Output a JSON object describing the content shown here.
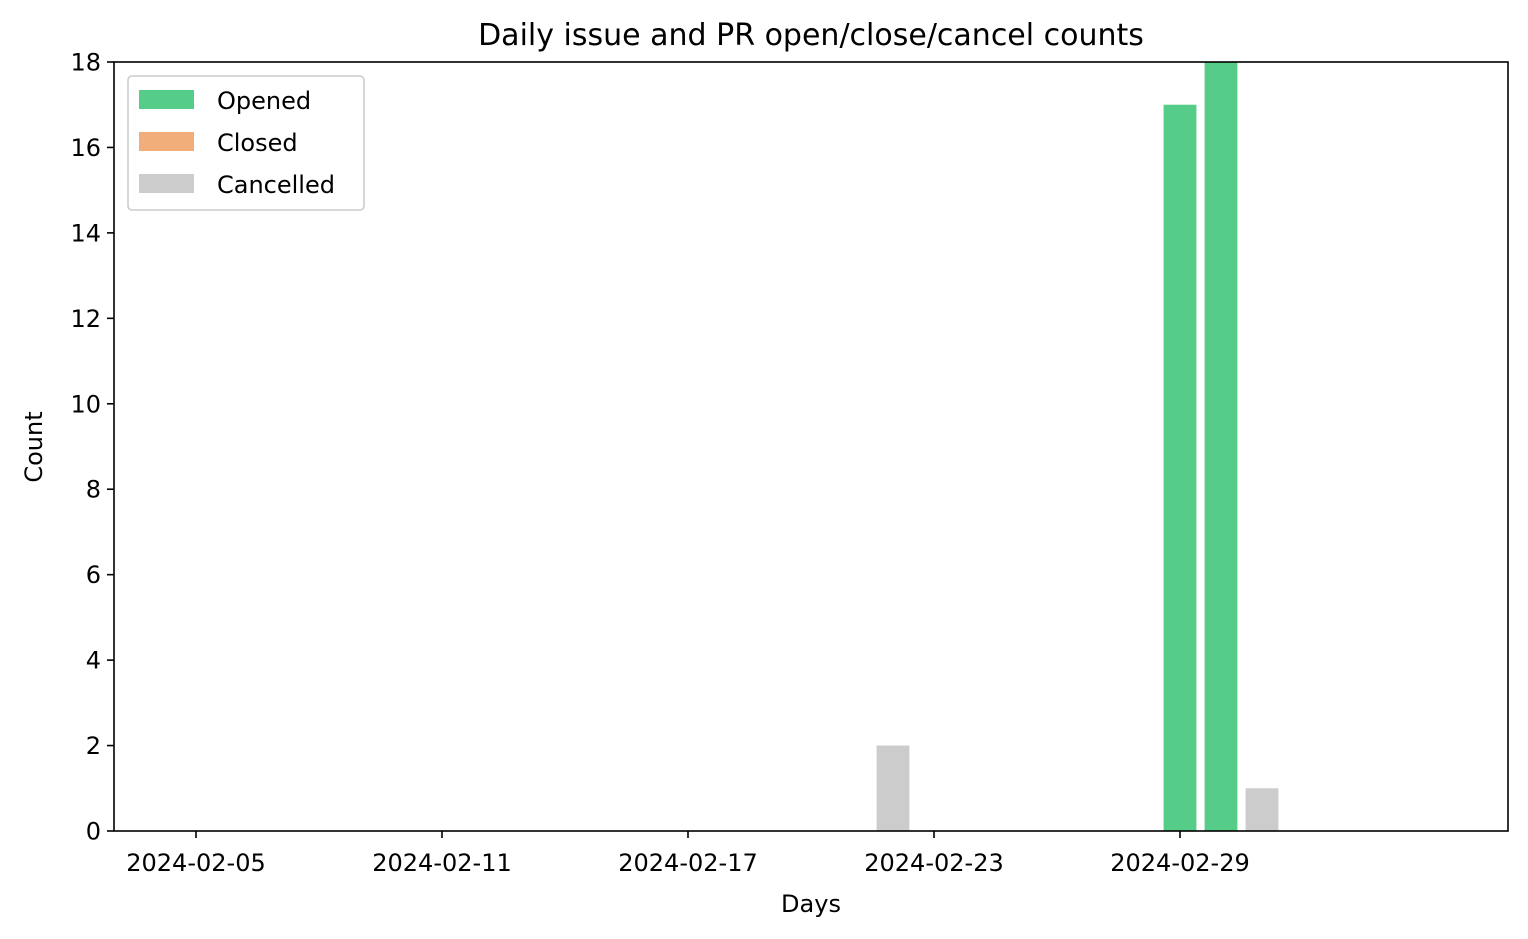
{
  "chart_data": {
    "type": "bar",
    "title": "Daily issue and PR open/close/cancel counts",
    "xlabel": "Days",
    "ylabel": "Count",
    "ylim": [
      0,
      18
    ],
    "xlim": [
      "2024-02-03",
      "2024-03-08"
    ],
    "x_ticks": [
      "2024-02-05",
      "2024-02-11",
      "2024-02-17",
      "2024-02-23",
      "2024-02-29"
    ],
    "y_ticks": [
      0,
      2,
      4,
      6,
      8,
      10,
      12,
      14,
      16,
      18
    ],
    "grid": false,
    "legend_position": "top-left",
    "series": [
      {
        "name": "Opened",
        "color": "#55cc88",
        "points": [
          {
            "date": "2024-02-29",
            "value": 17
          },
          {
            "date": "2024-03-01",
            "value": 18
          }
        ]
      },
      {
        "name": "Closed",
        "color": "#f1ae7a",
        "points": []
      },
      {
        "name": "Cancelled",
        "color": "#cccccc",
        "points": [
          {
            "date": "2024-02-22",
            "value": 2
          },
          {
            "date": "2024-03-02",
            "value": 1
          }
        ]
      }
    ]
  }
}
